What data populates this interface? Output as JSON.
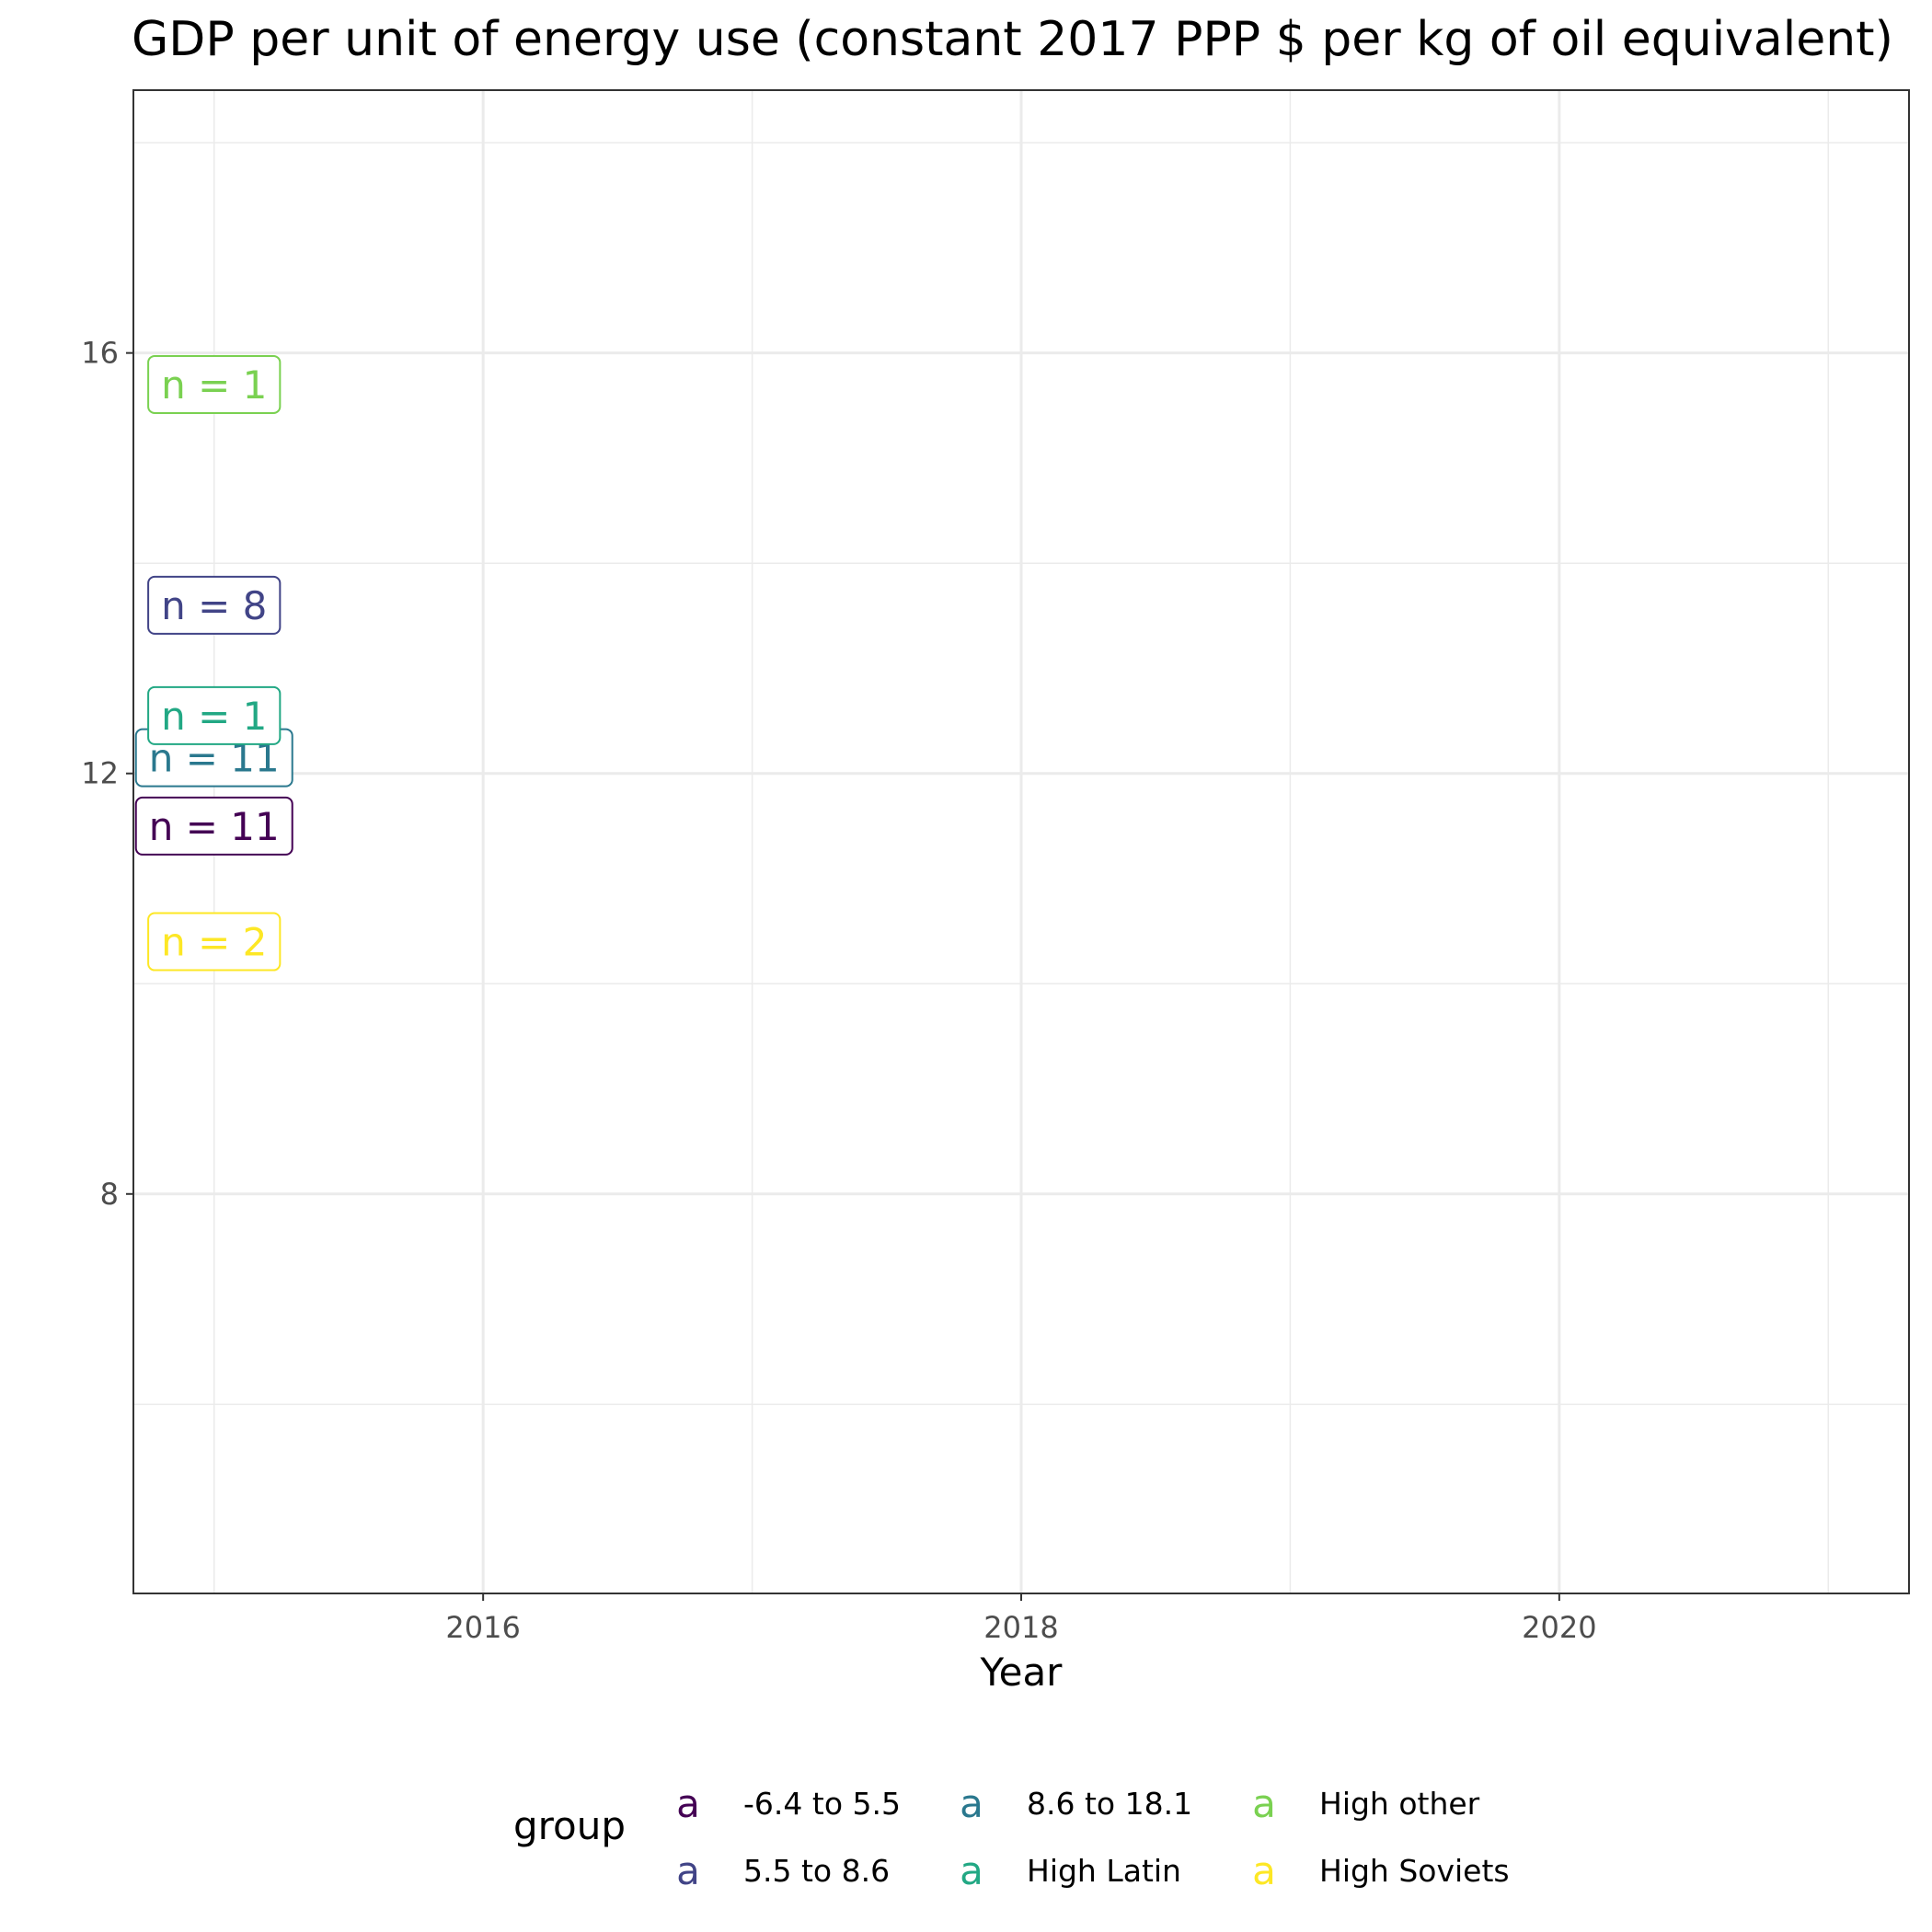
{
  "chart_data": {
    "type": "scatter",
    "title": "GDP per unit of energy use (constant 2017 PPP $ per kg of oil equivalent)",
    "xlabel": "Year",
    "ylabel": "",
    "xlim": [
      2014.7,
      2021.3
    ],
    "ylim": [
      4.2,
      18.5
    ],
    "x_ticks": [
      2016,
      2018,
      2020
    ],
    "y_ticks": [
      8,
      12,
      16
    ],
    "grid": true,
    "legend": {
      "title": "group",
      "position": "bottom",
      "key_glyph": "a"
    },
    "series": [
      {
        "name": "-6.4 to 5.5",
        "color": "#440154",
        "x": 2015,
        "y": 11.5,
        "label": "n = 11"
      },
      {
        "name": "5.5 to 8.6",
        "color": "#414487",
        "x": 2015,
        "y": 13.6,
        "label": "n = 8"
      },
      {
        "name": "8.6 to 18.1",
        "color": "#2a788e",
        "x": 2015,
        "y": 12.15,
        "label": "n = 11"
      },
      {
        "name": "High Latin",
        "color": "#22a884",
        "x": 2015,
        "y": 12.55,
        "label": "n = 1"
      },
      {
        "name": "High other",
        "color": "#7ad151",
        "x": 2015,
        "y": 15.7,
        "label": "n = 1"
      },
      {
        "name": "High Soviets",
        "color": "#fde725",
        "x": 2015,
        "y": 10.4,
        "label": "n = 2"
      }
    ]
  }
}
